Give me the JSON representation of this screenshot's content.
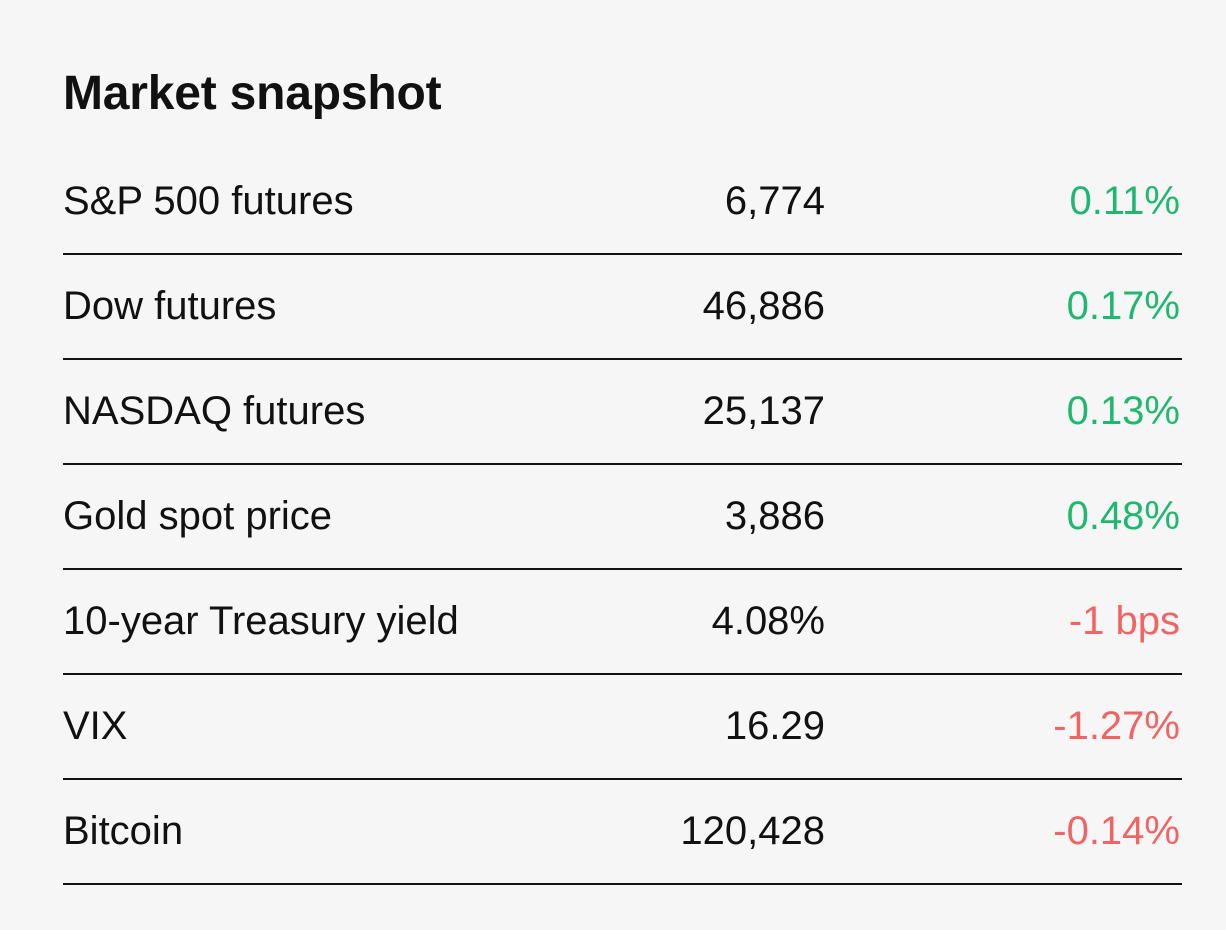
{
  "header": {
    "title": "Market snapshot"
  },
  "colors": {
    "positive": "#1fb870",
    "negative": "#f26464"
  },
  "rows": [
    {
      "name": "S&P 500 futures",
      "value": "6,774",
      "change": "0.11%",
      "direction": "up"
    },
    {
      "name": "Dow futures",
      "value": "46,886",
      "change": "0.17%",
      "direction": "up"
    },
    {
      "name": "NASDAQ futures",
      "value": "25,137",
      "change": "0.13%",
      "direction": "up"
    },
    {
      "name": "Gold spot price",
      "value": "3,886",
      "change": "0.48%",
      "direction": "up"
    },
    {
      "name": "10-year Treasury yield",
      "value": "4.08%",
      "change": "-1 bps",
      "direction": "down"
    },
    {
      "name": "VIX",
      "value": "16.29",
      "change": "-1.27%",
      "direction": "down"
    },
    {
      "name": "Bitcoin",
      "value": "120,428",
      "change": "-0.14%",
      "direction": "down"
    }
  ]
}
